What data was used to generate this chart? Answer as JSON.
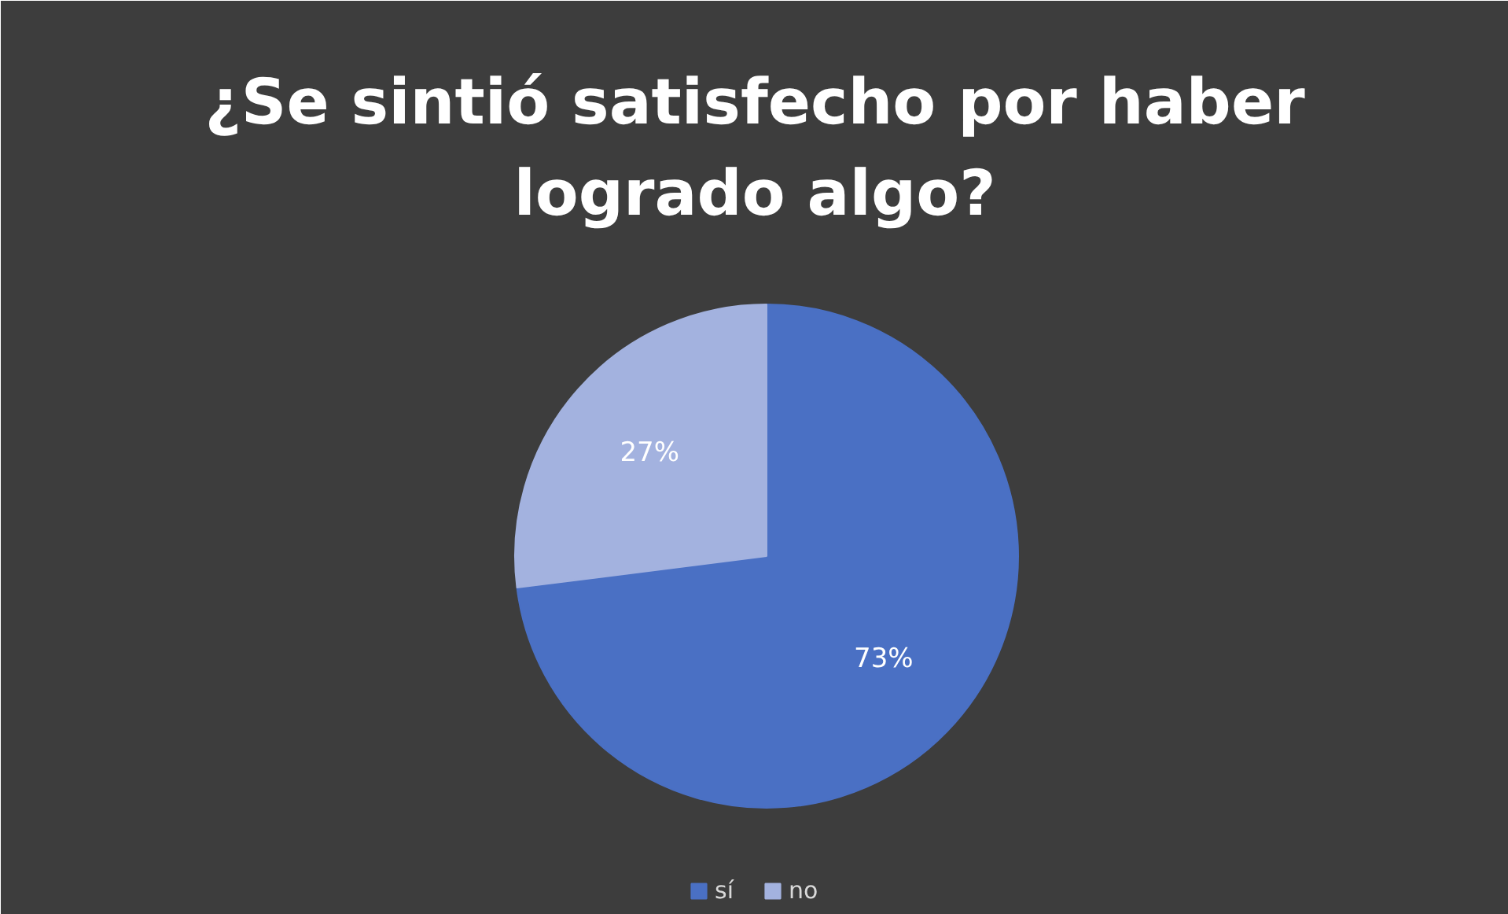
{
  "chart_data": {
    "type": "pie",
    "title": "¿Se sintió satisfecho por haber logrado algo?",
    "categories": [
      "sí",
      "no"
    ],
    "values": [
      73,
      27
    ],
    "colors": [
      "#4a70c4",
      "#a3b2df"
    ],
    "value_labels": [
      "73%",
      "27%"
    ],
    "legend": "bottom"
  }
}
